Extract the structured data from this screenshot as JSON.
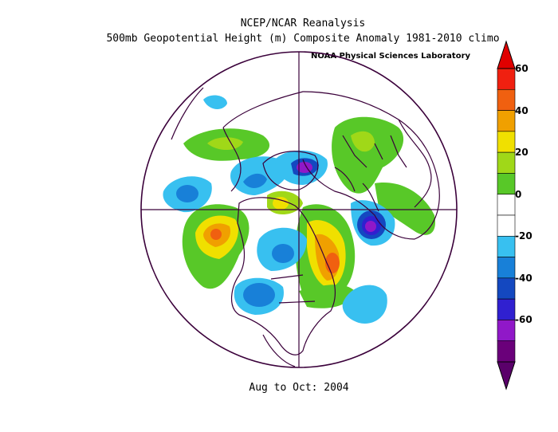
{
  "header": {
    "title": "NCEP/NCAR Reanalysis",
    "subtitle": "500mb Geopotential Height (m) Composite Anomaly 1981-2010 climo",
    "credit": "NOAA Physical Sciences Laboratory"
  },
  "footer": {
    "date_range": "Aug to Oct: 2004"
  },
  "colorbar": {
    "labels": [
      "60",
      "40",
      "20",
      "0",
      "-20",
      "-40",
      "-60"
    ],
    "colors": [
      "#f02010",
      "#f06010",
      "#f0a000",
      "#f0e000",
      "#a0d818",
      "#58c828",
      "#ffffff",
      "#ffffff",
      "#38c0f0",
      "#1880d8",
      "#1448c0",
      "#3020d0",
      "#9018c8",
      "#6a007a"
    ]
  },
  "map_data": {
    "projection": "north-polar-stereographic",
    "variable": "500mb geopotential height anomaly",
    "units": "m"
  }
}
